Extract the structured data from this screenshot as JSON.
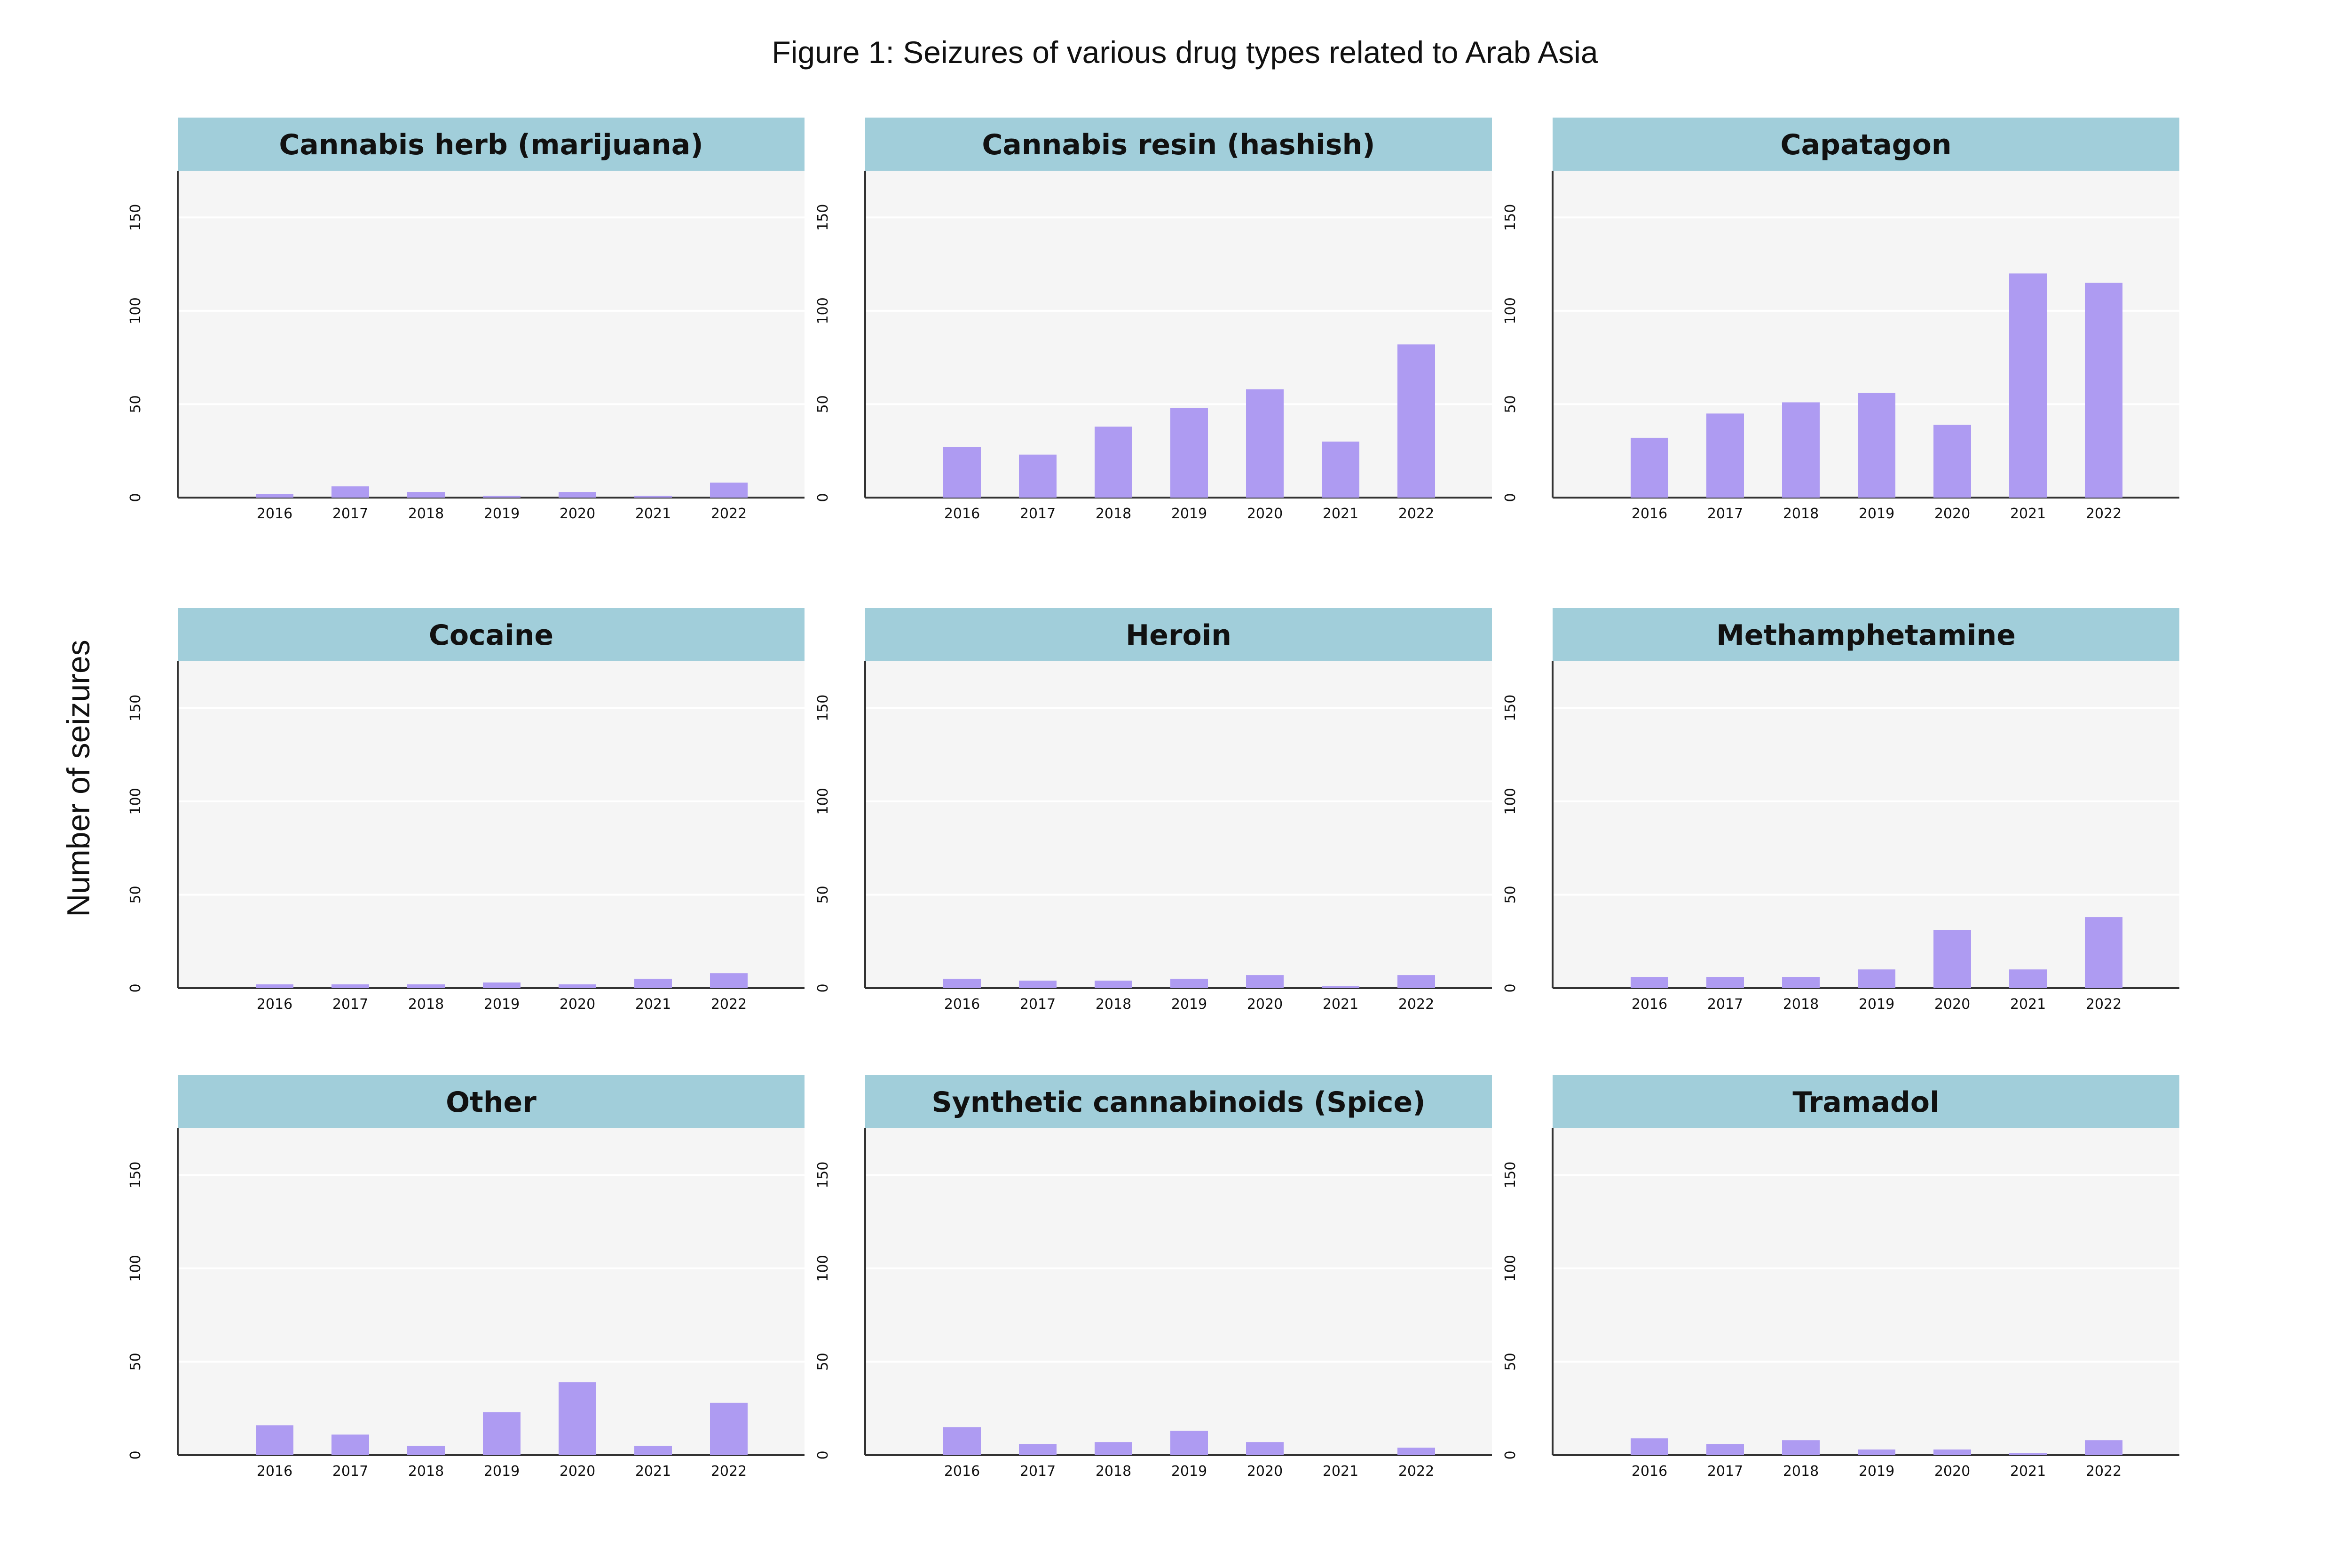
{
  "chart_data": {
    "type": "bar",
    "title": "Figure 1: Seizures of various drug types related to Arab Asia",
    "ylabel": "Number of seizures",
    "categories": [
      "2016",
      "2017",
      "2018",
      "2019",
      "2020",
      "2021",
      "2022"
    ],
    "ylim": [
      0,
      175
    ],
    "yticks": [
      0,
      50,
      100,
      150
    ],
    "grid": true,
    "bar_color": "#ae9bf2",
    "header_color": "#a1ceda",
    "panel_background": "#f5f5f5",
    "panels": [
      {
        "title": "Cannabis herb (marijuana)",
        "values": [
          2,
          6,
          3,
          1,
          3,
          1,
          8
        ]
      },
      {
        "title": "Cannabis resin (hashish)",
        "values": [
          27,
          23,
          38,
          48,
          58,
          30,
          82
        ]
      },
      {
        "title": "Capatagon",
        "values": [
          32,
          45,
          51,
          56,
          39,
          120,
          115
        ]
      },
      {
        "title": "Cocaine",
        "values": [
          2,
          2,
          2,
          3,
          2,
          5,
          8
        ]
      },
      {
        "title": "Heroin",
        "values": [
          5,
          4,
          4,
          5,
          7,
          1,
          7
        ]
      },
      {
        "title": "Methamphetamine",
        "values": [
          6,
          6,
          6,
          10,
          31,
          10,
          38
        ]
      },
      {
        "title": "Other",
        "values": [
          16,
          11,
          5,
          23,
          39,
          5,
          28
        ]
      },
      {
        "title": "Synthetic cannabinoids (Spice)",
        "values": [
          15,
          6,
          7,
          13,
          7,
          0,
          4
        ]
      },
      {
        "title": "Tramadol",
        "values": [
          9,
          6,
          8,
          3,
          3,
          1,
          8
        ]
      }
    ]
  }
}
